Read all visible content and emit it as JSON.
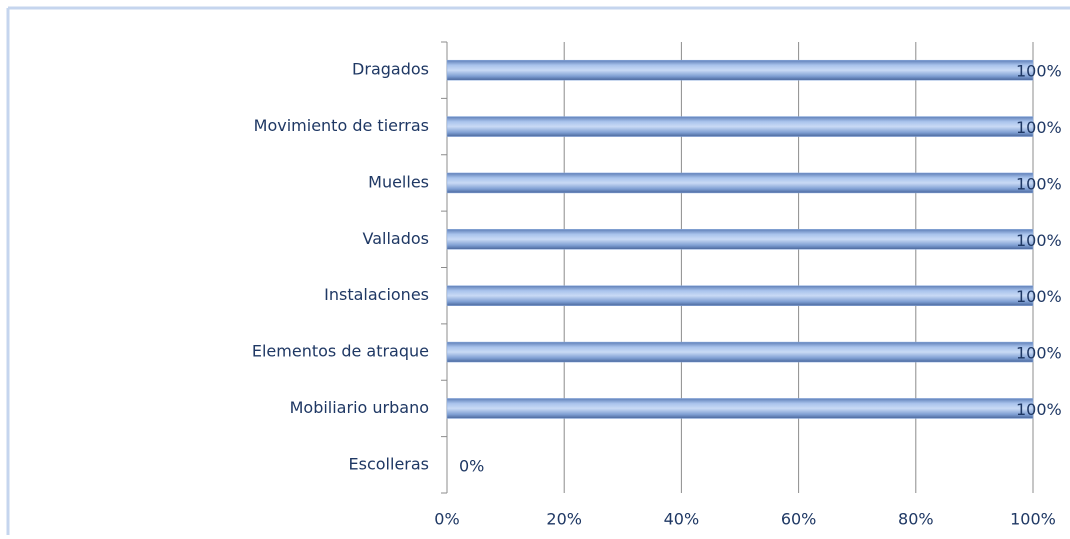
{
  "chart_data": {
    "type": "barh",
    "categories": [
      "Dragados",
      "Movimiento de tierras",
      "Muelles",
      "Vallados",
      "Instalaciones",
      "Elementos de atraque",
      "Mobiliario urbano",
      "Escolleras"
    ],
    "values": [
      100,
      100,
      100,
      100,
      100,
      100,
      100,
      0
    ],
    "value_labels": [
      "100%",
      "100%",
      "100%",
      "100%",
      "100%",
      "100%",
      "100%",
      "0%"
    ],
    "color": "#8eaee0",
    "xlim": [
      0,
      100
    ],
    "xticks": [
      {
        "value": 0,
        "label": "0%"
      },
      {
        "value": 20,
        "label": "20%"
      },
      {
        "value": 40,
        "label": "40%"
      },
      {
        "value": 60,
        "label": "60%"
      },
      {
        "value": 80,
        "label": "80%"
      },
      {
        "value": 100,
        "label": "100%"
      }
    ],
    "grid": true
  }
}
